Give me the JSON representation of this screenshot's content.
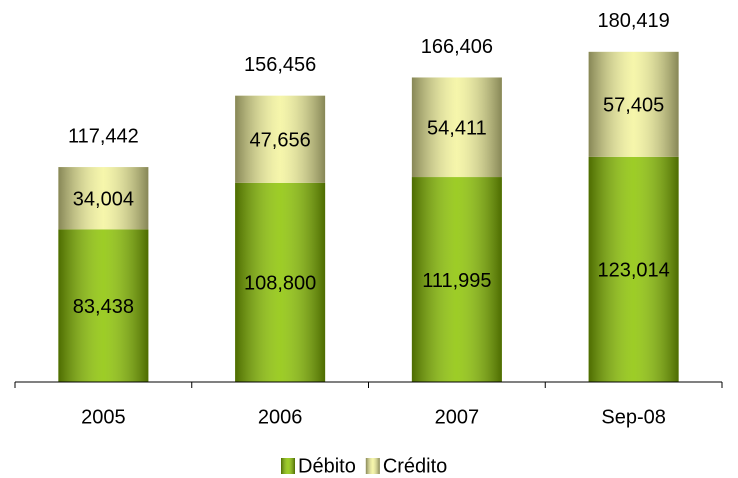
{
  "chart_data": {
    "type": "stacked_bar",
    "categories": [
      "2005",
      "2006",
      "2007",
      "Sep-08"
    ],
    "series": [
      {
        "name": "Débito",
        "color": "#8cc400",
        "values": [
          83438,
          108800,
          111995,
          123014
        ],
        "value_labels": [
          "83,438",
          "108,800",
          "111,995",
          "123,014"
        ]
      },
      {
        "name": "Crédito",
        "color": "#f4f49c",
        "values": [
          34004,
          47656,
          54411,
          57405
        ],
        "value_labels": [
          "34,004",
          "47,656",
          "54,411",
          "57,405"
        ]
      }
    ],
    "totals": [
      117442,
      156456,
      166406,
      180419
    ],
    "total_labels": [
      "117,442",
      "156,456",
      "166,406",
      "180,419"
    ],
    "ylim": [
      0,
      200000
    ],
    "legend": "bottom"
  }
}
